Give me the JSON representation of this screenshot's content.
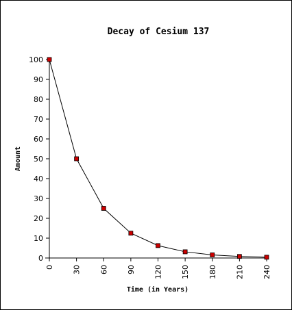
{
  "chart_data": {
    "type": "line",
    "title": "Decay of Cesium 137",
    "xlabel": "Time (in Years)",
    "ylabel": "Amount",
    "x": [
      0,
      30,
      60,
      90,
      120,
      150,
      180,
      210,
      240
    ],
    "series": [
      {
        "values": [
          100,
          50,
          25,
          12.5,
          6.25,
          3.125,
          1.5625,
          0.78125,
          0.390625
        ]
      }
    ],
    "xlim": [
      0,
      240
    ],
    "ylim": [
      0,
      100
    ],
    "xticks": [
      "0",
      "30",
      "60",
      "90",
      "120",
      "150",
      "180",
      "210",
      "240"
    ],
    "yticks": [
      "0",
      "10",
      "20",
      "30",
      "40",
      "50",
      "60",
      "70",
      "80",
      "90",
      "100"
    ],
    "grid": false,
    "legend": "none",
    "colors": {
      "line": "#000000",
      "marker": "#cc0000",
      "marker_edge": "#000000"
    }
  }
}
